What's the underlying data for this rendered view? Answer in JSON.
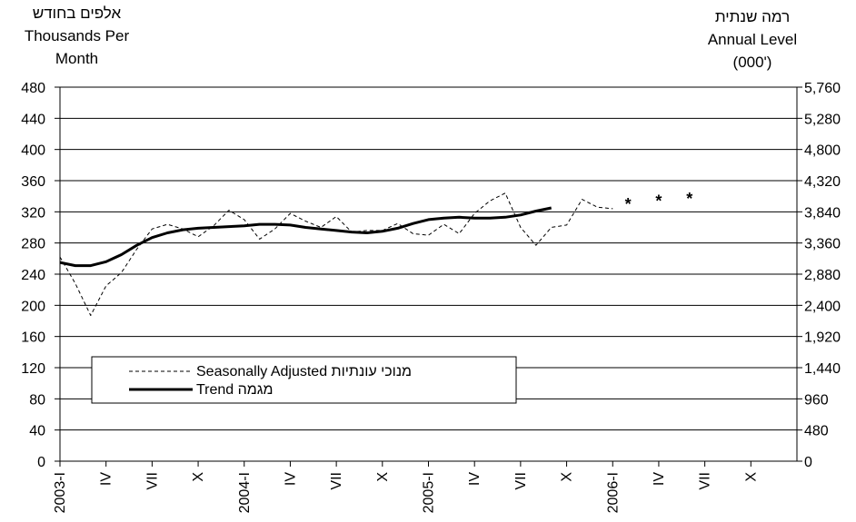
{
  "header": {
    "left_lines": [
      "אלפים בחודש",
      "Thousands Per",
      "Month"
    ],
    "right_lines": [
      "רמה שנתית",
      "Annual Level",
      "(000')"
    ]
  },
  "legend": {
    "seasonal_label": "Seasonally Adjusted מנוכי עונתיות",
    "trend_label": "Trend מגמה"
  },
  "chart_data": {
    "type": "line",
    "title": "",
    "xlabel": "",
    "ylabel": "Thousands Per Month",
    "y2label": "Annual Level (000')",
    "ylim": [
      0,
      480
    ],
    "y2lim": [
      0,
      5760
    ],
    "grid": true,
    "legend_position": "lower-left",
    "yticks": [
      "0",
      "40",
      "80",
      "120",
      "160",
      "200",
      "240",
      "280",
      "320",
      "360",
      "400",
      "440",
      "480"
    ],
    "y2ticks": [
      "0",
      "480",
      "960",
      "1,440",
      "1,920",
      "2,400",
      "2,880",
      "3,360",
      "3,840",
      "4,320",
      "4,800",
      "5,280",
      "5,760"
    ],
    "x_tick_labels": [
      "2003-I",
      "IV",
      "VII",
      "X",
      "2004-I",
      "IV",
      "VII",
      "X",
      "2005-I",
      "IV",
      "VII",
      "X",
      "2006-I",
      "IV",
      "VII",
      "X"
    ],
    "series": [
      {
        "name": "Seasonally Adjusted מנוכי עונתיות",
        "style": "dashed",
        "color": "#000000",
        "points": [
          [
            0,
            262
          ],
          [
            1,
            228
          ],
          [
            2,
            187
          ],
          [
            3,
            225
          ],
          [
            4,
            242
          ],
          [
            5,
            272
          ],
          [
            6,
            298
          ],
          [
            7,
            304
          ],
          [
            8,
            298
          ],
          [
            9,
            288
          ],
          [
            10,
            302
          ],
          [
            11,
            322
          ],
          [
            12,
            310
          ],
          [
            13,
            285
          ],
          [
            14,
            298
          ],
          [
            15,
            318
          ],
          [
            16,
            308
          ],
          [
            17,
            300
          ],
          [
            18,
            314
          ],
          [
            19,
            294
          ],
          [
            20,
            296
          ],
          [
            21,
            296
          ],
          [
            22,
            305
          ],
          [
            23,
            292
          ],
          [
            24,
            290
          ],
          [
            25,
            304
          ],
          [
            26,
            292
          ],
          [
            27,
            318
          ],
          [
            28,
            334
          ],
          [
            29,
            344
          ],
          [
            30,
            300
          ],
          [
            31,
            277
          ],
          [
            32,
            300
          ],
          [
            33,
            303
          ],
          [
            34,
            336
          ],
          [
            35,
            326
          ],
          [
            36,
            324
          ]
        ]
      },
      {
        "name": "Trend מגמה",
        "style": "solid",
        "color": "#000000",
        "points": [
          [
            0,
            255
          ],
          [
            1,
            251
          ],
          [
            2,
            251
          ],
          [
            3,
            256
          ],
          [
            4,
            265
          ],
          [
            5,
            277
          ],
          [
            6,
            287
          ],
          [
            7,
            293
          ],
          [
            8,
            297
          ],
          [
            9,
            299
          ],
          [
            10,
            300
          ],
          [
            11,
            301
          ],
          [
            12,
            302
          ],
          [
            13,
            304
          ],
          [
            14,
            304
          ],
          [
            15,
            303
          ],
          [
            16,
            300
          ],
          [
            17,
            298
          ],
          [
            18,
            296
          ],
          [
            19,
            294
          ],
          [
            20,
            293
          ],
          [
            21,
            295
          ],
          [
            22,
            299
          ],
          [
            23,
            305
          ],
          [
            24,
            310
          ],
          [
            25,
            312
          ],
          [
            26,
            313
          ],
          [
            27,
            312
          ],
          [
            28,
            312
          ],
          [
            29,
            313
          ],
          [
            30,
            316
          ],
          [
            31,
            321
          ],
          [
            32,
            325
          ]
        ]
      },
      {
        "name": "",
        "style": "markers",
        "marker": "*",
        "color": "#000000",
        "points": [
          [
            37,
            333
          ],
          [
            39,
            337
          ],
          [
            41,
            340
          ]
        ]
      }
    ]
  }
}
